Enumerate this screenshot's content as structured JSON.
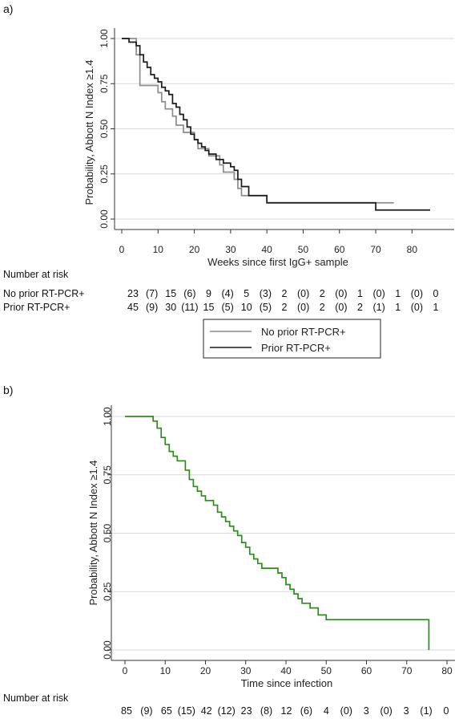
{
  "chart_data": [
    {
      "panel_label": "a)",
      "type": "line",
      "step": true,
      "xlabel": "Weeks since first IgG+ sample",
      "ylabel": "Probability, Abbott N Index ≥1.4",
      "xlim": [
        0,
        85
      ],
      "ylim": [
        0,
        1
      ],
      "x_ticks": [
        0,
        10,
        20,
        30,
        40,
        50,
        60,
        70,
        80
      ],
      "y_ticks": [
        0,
        0.25,
        0.5,
        0.75,
        1
      ],
      "y_tick_labels": [
        "0.00",
        "0.25",
        "0.50",
        "0.75",
        "1.00"
      ],
      "grid": true,
      "series": [
        {
          "name": "No prior RT-PCR+",
          "color": "#8c8c8c",
          "x": [
            0,
            3,
            4,
            5,
            9,
            10,
            11,
            12,
            13,
            14,
            15,
            17,
            18,
            20,
            21,
            22,
            24,
            26,
            27,
            28,
            29,
            31,
            32,
            33,
            35,
            36,
            37,
            38,
            40,
            45,
            50,
            55,
            60,
            65,
            70,
            75
          ],
          "y": [
            1.0,
            1.0,
            0.91,
            0.74,
            0.74,
            0.7,
            0.65,
            0.61,
            0.61,
            0.57,
            0.52,
            0.48,
            0.48,
            0.44,
            0.39,
            0.39,
            0.35,
            0.35,
            0.3,
            0.26,
            0.26,
            0.22,
            0.17,
            0.13,
            0.13,
            0.13,
            0.13,
            0.13,
            0.09,
            0.09,
            0.09,
            0.09,
            0.09,
            0.09,
            0.09,
            0.09
          ]
        },
        {
          "name": "Prior RT-PCR+",
          "color": "#1a1a1a",
          "x": [
            0,
            2,
            4,
            5,
            6,
            7,
            8,
            9,
            10,
            11,
            12,
            13,
            14,
            15,
            16,
            17,
            18,
            19,
            20,
            21,
            22,
            23,
            24,
            25,
            26,
            27,
            28,
            29,
            30,
            31,
            32,
            33,
            34,
            35,
            37,
            38,
            39,
            40,
            45,
            50,
            55,
            60,
            65,
            69,
            70,
            75,
            80,
            85
          ],
          "y": [
            1.0,
            0.98,
            0.96,
            0.91,
            0.87,
            0.84,
            0.8,
            0.78,
            0.76,
            0.73,
            0.71,
            0.69,
            0.64,
            0.62,
            0.58,
            0.55,
            0.51,
            0.47,
            0.44,
            0.42,
            0.4,
            0.38,
            0.36,
            0.36,
            0.33,
            0.33,
            0.31,
            0.31,
            0.29,
            0.27,
            0.22,
            0.18,
            0.18,
            0.13,
            0.13,
            0.13,
            0.13,
            0.09,
            0.09,
            0.09,
            0.09,
            0.09,
            0.09,
            0.09,
            0.05,
            0.05,
            0.05,
            0.05
          ]
        }
      ],
      "legend": {
        "placement": "bottom",
        "entries": [
          "No prior RT-PCR+",
          "Prior RT-PCR+"
        ]
      },
      "risk_table": {
        "title": "Number at risk",
        "rows": [
          {
            "label": "No prior RT-PCR+",
            "cells": [
              "23",
              "(7)",
              "15",
              "(6)",
              "9",
              "(4)",
              "5",
              "(3)",
              "2",
              "(0)",
              "2",
              "(0)",
              "1",
              "(0)",
              "1",
              "(0)",
              "0"
            ]
          },
          {
            "label": "Prior RT-PCR+",
            "cells": [
              "45",
              "(9)",
              "30",
              "(11)",
              "15",
              "(5)",
              "10",
              "(5)",
              "2",
              "(0)",
              "2",
              "(0)",
              "2",
              "(1)",
              "1",
              "(0)",
              "1"
            ]
          }
        ]
      }
    },
    {
      "panel_label": "b)",
      "type": "line",
      "step": true,
      "xlabel": "Time since infection",
      "ylabel": "Probability, Abbott N Index ≥1.4",
      "xlim": [
        0,
        80
      ],
      "ylim": [
        0,
        1
      ],
      "x_ticks": [
        0,
        10,
        20,
        30,
        40,
        50,
        60,
        70,
        80
      ],
      "y_ticks": [
        0,
        0.25,
        0.5,
        0.75,
        1
      ],
      "y_tick_labels": [
        "0.00",
        "0.25",
        "0.50",
        "0.75",
        "1.00"
      ],
      "grid": true,
      "series": [
        {
          "color": "#2e8b1e",
          "x": [
            0,
            7,
            8,
            9,
            10,
            11,
            12,
            13,
            15,
            16,
            17,
            18,
            19,
            20,
            22,
            23,
            24,
            25,
            26,
            27,
            28,
            29,
            30,
            31,
            32,
            33,
            34,
            37,
            38,
            39,
            40,
            41,
            42,
            43,
            44,
            46,
            48,
            50,
            55,
            60,
            65,
            70,
            75,
            75.5
          ],
          "y": [
            1.0,
            0.98,
            0.95,
            0.91,
            0.88,
            0.85,
            0.83,
            0.81,
            0.77,
            0.73,
            0.7,
            0.68,
            0.66,
            0.64,
            0.62,
            0.59,
            0.57,
            0.55,
            0.53,
            0.51,
            0.49,
            0.46,
            0.44,
            0.41,
            0.39,
            0.37,
            0.35,
            0.35,
            0.33,
            0.31,
            0.28,
            0.26,
            0.24,
            0.22,
            0.2,
            0.18,
            0.15,
            0.13,
            0.13,
            0.13,
            0.13,
            0.13,
            0.13,
            0.0
          ]
        }
      ],
      "risk_table": {
        "title": "Number at risk",
        "rows": [
          {
            "label": "",
            "cells": [
              "85",
              "(9)",
              "65",
              "(15)",
              "42",
              "(12)",
              "23",
              "(8)",
              "12",
              "(6)",
              "4",
              "(0)",
              "3",
              "(0)",
              "3",
              "(1)",
              "0"
            ]
          }
        ]
      }
    }
  ]
}
